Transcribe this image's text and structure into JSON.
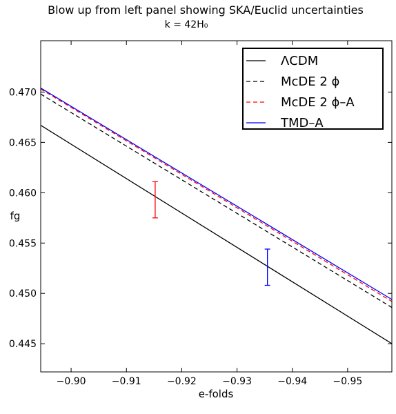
{
  "chart_data": {
    "type": "line",
    "title": "Blow up from left panel showing SKA/Euclid uncertainties",
    "subtitle": "k = 42H₀",
    "xlabel": "e-folds",
    "ylabel": "fg",
    "xlim": [
      -0.8945,
      -0.958
    ],
    "ylim": [
      0.4422,
      0.4751
    ],
    "x_ticks": [
      -0.9,
      -0.91,
      -0.92,
      -0.93,
      -0.94,
      -0.95
    ],
    "x_tick_labels": [
      "−0.90",
      "−0.91",
      "−0.92",
      "−0.93",
      "−0.94",
      "−0.95"
    ],
    "y_ticks": [
      0.445,
      0.45,
      0.455,
      0.46,
      0.465,
      0.47
    ],
    "y_tick_labels": [
      "0.445",
      "0.450",
      "0.455",
      "0.460",
      "0.465",
      "0.470"
    ],
    "grid": false,
    "legend_position": "top-right",
    "series": [
      {
        "name": "ΛCDM",
        "color": "#000000",
        "dash": "solid",
        "x": [
          -0.8945,
          -0.958
        ],
        "y": [
          0.4667,
          0.445
        ]
      },
      {
        "name": "McDE 2 ϕ",
        "color": "#000000",
        "dash": "dashed",
        "x": [
          -0.8945,
          -0.958
        ],
        "y": [
          0.4698,
          0.4486
        ]
      },
      {
        "name": "McDE 2 ϕ–A",
        "color": "#ff0000",
        "dash": "dashed",
        "x": [
          -0.8945,
          -0.958
        ],
        "y": [
          0.4703,
          0.4492
        ]
      },
      {
        "name": "TMD–A",
        "color": "#0000ff",
        "dash": "solid",
        "x": [
          -0.8945,
          -0.958
        ],
        "y": [
          0.4704,
          0.4494
        ]
      }
    ],
    "error_bars": [
      {
        "color": "#ff0000",
        "x": -0.9152,
        "y_low": 0.4575,
        "y_high": 0.4611
      },
      {
        "color": "#0000ff",
        "x": -0.9355,
        "y_low": 0.4508,
        "y_high": 0.4544
      }
    ]
  }
}
